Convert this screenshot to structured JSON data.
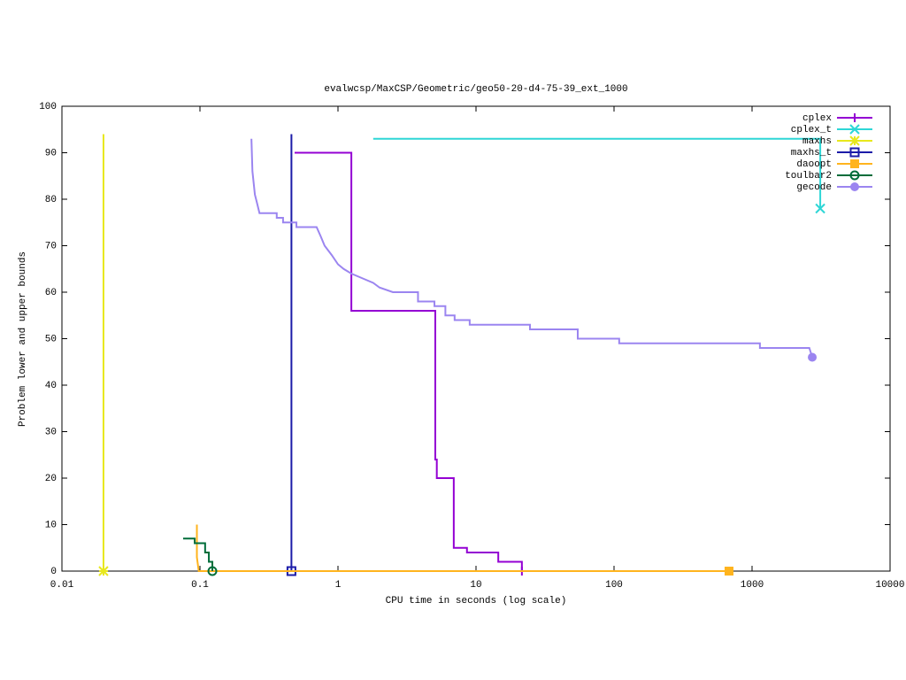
{
  "chart_data": {
    "type": "line",
    "title": "evalwcsp/MaxCSP/Geometric/geo50-20-d4-75-39_ext_1000",
    "xlabel": "CPU time in seconds (log scale)",
    "ylabel": "Problem lower and upper bounds",
    "xscale": "log",
    "xlim": [
      0.01,
      10000
    ],
    "xticks": [
      0.01,
      0.1,
      1,
      10,
      100,
      1000,
      10000
    ],
    "ylim": [
      0,
      100
    ],
    "yticks": [
      0,
      10,
      20,
      30,
      40,
      50,
      60,
      70,
      80,
      90,
      100
    ],
    "legend": "top-right",
    "series": [
      {
        "name": "cplex",
        "color": "#9400d3",
        "marker": "plus",
        "x": [
          0.485,
          1.25,
          1.25,
          5.07,
          5.07,
          5.2,
          5.2,
          6.9,
          6.9,
          8.6,
          8.6,
          14.5,
          14.5,
          21.5,
          21.5
        ],
        "values": [
          90,
          90,
          56,
          56,
          24,
          24,
          20,
          20,
          5,
          5,
          4,
          4,
          2,
          2,
          0
        ]
      },
      {
        "name": "cplex_t",
        "color": "#2ed6d6",
        "marker": "cross",
        "x": [
          1.8,
          3120,
          3120
        ],
        "values": [
          93,
          93,
          78
        ]
      },
      {
        "name": "maxhs",
        "color": "#e8e81c",
        "marker": "star",
        "x": [
          0.02,
          0.02
        ],
        "values": [
          94,
          0
        ]
      },
      {
        "name": "maxhs_t",
        "color": "#1c1ca8",
        "marker": "square-open",
        "x": [
          0.46,
          0.46
        ],
        "values": [
          94,
          0
        ]
      },
      {
        "name": "daoopt",
        "color": "#ffb41e",
        "marker": "square",
        "x": [
          0.095,
          0.095,
          0.098,
          681
        ],
        "values": [
          10,
          3,
          0,
          0
        ]
      },
      {
        "name": "toulbar2",
        "color": "#006d3a",
        "marker": "circle-open",
        "x": [
          0.0755,
          0.0916,
          0.0916,
          0.109,
          0.109,
          0.116,
          0.116,
          0.123,
          0.123
        ],
        "values": [
          7,
          7,
          6,
          6,
          4,
          4,
          2,
          2,
          0
        ]
      },
      {
        "name": "gecode",
        "color": "#9b85f0",
        "marker": "circle",
        "x": [
          0.236,
          0.24,
          0.25,
          0.26,
          0.27,
          0.36,
          0.36,
          0.4,
          0.4,
          0.5,
          0.5,
          0.7,
          0.75,
          0.8,
          0.9,
          1.0,
          1.1,
          1.25,
          1.5,
          1.8,
          2,
          2.5,
          3.8,
          3.8,
          5,
          5,
          6,
          6,
          7,
          7,
          9,
          9,
          24.6,
          24.6,
          54.6,
          54.6,
          109,
          109,
          1140,
          1140,
          2600,
          2730
        ],
        "values": [
          93,
          86,
          81,
          79,
          77,
          77,
          76,
          76,
          75,
          75,
          74,
          74,
          72,
          70,
          68,
          66,
          65,
          64,
          63,
          62,
          61,
          60,
          60,
          58,
          58,
          57,
          57,
          55,
          55,
          54,
          54,
          53,
          53,
          52,
          52,
          50,
          50,
          49,
          49,
          48,
          48,
          46
        ]
      }
    ]
  }
}
